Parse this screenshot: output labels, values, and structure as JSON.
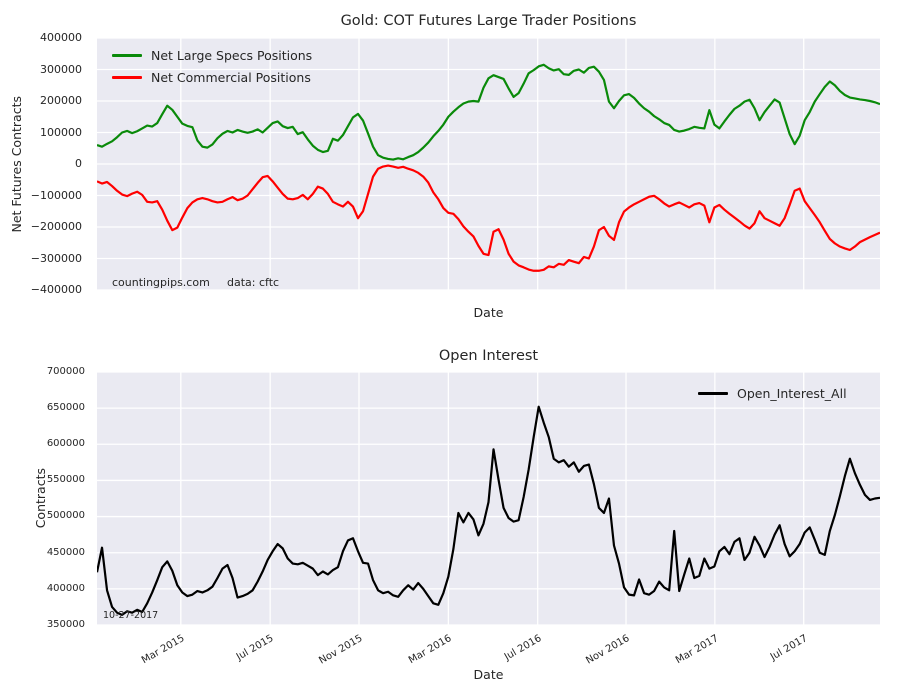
{
  "figure": {
    "background": "#ffffff",
    "plot_background": "#eaeaf2",
    "grid_color": "#ffffff",
    "text_color": "#262626",
    "total_weeks": 156,
    "x_tick_weeks": [
      16.7,
      34.5,
      52.2,
      70.0,
      87.8,
      105.4,
      123.1,
      140.8
    ]
  },
  "chart_data": [
    {
      "type": "line",
      "title": "Gold: COT Futures Large Trader Positions",
      "xlabel": "Date",
      "ylabel": "Net Futures Contracts",
      "ylim": [
        -400000,
        400000
      ],
      "grid": true,
      "legend_position": "upper left",
      "x_range": "Nov 2014 to Oct 2017, weekly",
      "y_ticks": [
        {
          "value": 400000,
          "label": "400000"
        },
        {
          "value": 300000,
          "label": "300000"
        },
        {
          "value": 200000,
          "label": "200000"
        },
        {
          "value": 100000,
          "label": "100000"
        },
        {
          "value": 0,
          "label": "0"
        },
        {
          "value": -100000,
          "label": "−100000"
        },
        {
          "value": -200000,
          "label": "−200000"
        },
        {
          "value": -300000,
          "label": "−300000"
        },
        {
          "value": -400000,
          "label": "−400000"
        }
      ],
      "x_tick_labels": [
        "",
        "",
        "",
        "",
        "",
        "",
        "",
        ""
      ],
      "annotations": [
        {
          "text": "countingpips.com"
        },
        {
          "text": "data: cftc"
        }
      ],
      "value_scale": 1000,
      "series": [
        {
          "name": "Net Large Specs Positions",
          "color": "#0a8a0a",
          "values": [
            60,
            55,
            64,
            72,
            85,
            100,
            105,
            98,
            104,
            113,
            122,
            119,
            130,
            158,
            185,
            172,
            150,
            128,
            121,
            117,
            75,
            55,
            52,
            62,
            82,
            96,
            105,
            100,
            108,
            103,
            99,
            103,
            110,
            100,
            115,
            130,
            135,
            120,
            114,
            118,
            95,
            101,
            78,
            58,
            45,
            38,
            42,
            80,
            74,
            92,
            120,
            148,
            159,
            138,
            97,
            55,
            28,
            20,
            16,
            14,
            18,
            15,
            22,
            28,
            38,
            52,
            68,
            88,
            105,
            125,
            150,
            166,
            180,
            192,
            198,
            200,
            198,
            242,
            272,
            282,
            276,
            270,
            240,
            213,
            225,
            255,
            288,
            298,
            310,
            315,
            304,
            297,
            301,
            285,
            283,
            296,
            300,
            290,
            305,
            309,
            293,
            267,
            198,
            177,
            200,
            218,
            222,
            210,
            192,
            177,
            166,
            152,
            142,
            130,
            124,
            108,
            103,
            106,
            111,
            118,
            115,
            113,
            171,
            125,
            113,
            135,
            156,
            175,
            185,
            198,
            204,
            177,
            139,
            165,
            185,
            205,
            195,
            145,
            95,
            63,
            90,
            139,
            165,
            198,
            222,
            245,
            262,
            250,
            232,
            219,
            211,
            208,
            205,
            203,
            200,
            196,
            190
          ]
        },
        {
          "name": "Net Commercial Positions",
          "color": "#ff0000",
          "values": [
            -55,
            -62,
            -57,
            -70,
            -85,
            -97,
            -102,
            -94,
            -88,
            -98,
            -120,
            -122,
            -118,
            -145,
            -180,
            -210,
            -202,
            -170,
            -140,
            -122,
            -112,
            -108,
            -112,
            -118,
            -122,
            -120,
            -112,
            -105,
            -115,
            -110,
            -100,
            -80,
            -60,
            -42,
            -38,
            -55,
            -75,
            -95,
            -110,
            -112,
            -108,
            -98,
            -112,
            -95,
            -72,
            -78,
            -95,
            -120,
            -128,
            -135,
            -120,
            -135,
            -172,
            -150,
            -95,
            -40,
            -15,
            -8,
            -5,
            -8,
            -12,
            -9,
            -15,
            -20,
            -28,
            -40,
            -59,
            -90,
            -112,
            -140,
            -155,
            -158,
            -175,
            -198,
            -215,
            -230,
            -260,
            -285,
            -289,
            -215,
            -207,
            -240,
            -285,
            -310,
            -322,
            -328,
            -335,
            -339,
            -339,
            -336,
            -325,
            -328,
            -317,
            -320,
            -305,
            -310,
            -315,
            -295,
            -300,
            -262,
            -210,
            -200,
            -228,
            -241,
            -185,
            -151,
            -138,
            -128,
            -120,
            -112,
            -104,
            -101,
            -112,
            -125,
            -135,
            -128,
            -122,
            -130,
            -138,
            -128,
            -124,
            -132,
            -185,
            -138,
            -130,
            -145,
            -158,
            -170,
            -182,
            -195,
            -205,
            -188,
            -150,
            -172,
            -180,
            -188,
            -196,
            -172,
            -130,
            -85,
            -78,
            -118,
            -140,
            -162,
            -185,
            -212,
            -238,
            -252,
            -262,
            -268,
            -273,
            -262,
            -248,
            -240,
            -232,
            -225,
            -218
          ]
        }
      ]
    },
    {
      "type": "line",
      "title": "Open Interest",
      "xlabel": "Date",
      "ylabel": "Contracts",
      "ylim": [
        350000,
        700000
      ],
      "grid": true,
      "legend_position": "upper right",
      "x_range": "Nov 2014 to Oct 2017, weekly",
      "y_ticks": [
        {
          "value": 700000,
          "label": "700000"
        },
        {
          "value": 650000,
          "label": "650000"
        },
        {
          "value": 600000,
          "label": "600000"
        },
        {
          "value": 550000,
          "label": "550000"
        },
        {
          "value": 500000,
          "label": "500000"
        },
        {
          "value": 450000,
          "label": "450000"
        },
        {
          "value": 400000,
          "label": "400000"
        },
        {
          "value": 350000,
          "label": "350000"
        }
      ],
      "x_tick_labels": [
        "Mar 2015",
        "Jul 2015",
        "Nov 2015",
        "Mar 2016",
        "Jul 2016",
        "Nov 2016",
        "Mar 2017",
        "Jul 2017"
      ],
      "annotations": [
        {
          "text": "10-27-2017"
        }
      ],
      "value_scale": 1000,
      "series": [
        {
          "name": "Open_Interest_All",
          "color": "#000000",
          "values": [
            423,
            457,
            398,
            375,
            367,
            364,
            369,
            367,
            371,
            368,
            380,
            395,
            412,
            430,
            438,
            425,
            405,
            395,
            390,
            392,
            397,
            395,
            398,
            403,
            415,
            428,
            433,
            415,
            388,
            390,
            393,
            398,
            410,
            424,
            440,
            452,
            462,
            456,
            442,
            435,
            434,
            436,
            432,
            428,
            419,
            424,
            420,
            426,
            430,
            452,
            467,
            470,
            452,
            436,
            435,
            412,
            398,
            394,
            396,
            391,
            389,
            398,
            405,
            399,
            408,
            400,
            390,
            380,
            378,
            394,
            417,
            455,
            505,
            492,
            505,
            496,
            474,
            490,
            520,
            593,
            551,
            512,
            498,
            493,
            495,
            527,
            565,
            610,
            652,
            630,
            610,
            580,
            575,
            578,
            569,
            575,
            562,
            570,
            572,
            545,
            512,
            505,
            525,
            460,
            435,
            402,
            392,
            391,
            413,
            394,
            392,
            397,
            410,
            402,
            398,
            480,
            397,
            420,
            442,
            415,
            418,
            442,
            428,
            431,
            452,
            458,
            448,
            465,
            470,
            440,
            450,
            472,
            460,
            444,
            458,
            475,
            488,
            462,
            445,
            452,
            462,
            478,
            485,
            468,
            450,
            447,
            480,
            502,
            528,
            556,
            580,
            560,
            544,
            530,
            523,
            525,
            526
          ]
        }
      ]
    }
  ]
}
